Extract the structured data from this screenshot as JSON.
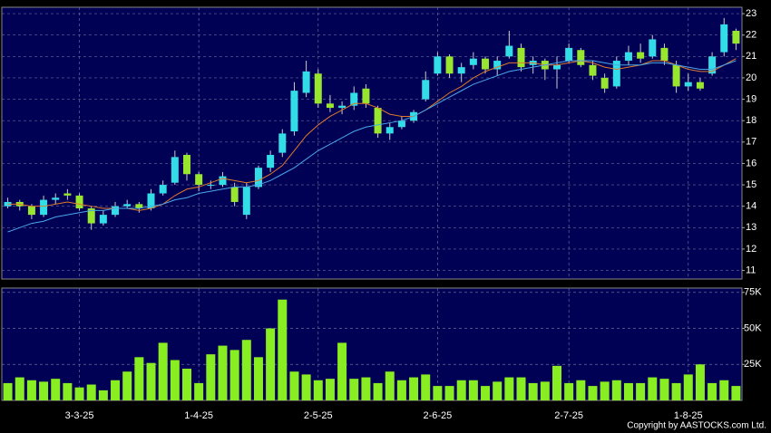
{
  "chart_data": {
    "type": "candlestick",
    "categories": [
      null,
      null,
      null,
      null,
      null,
      null,
      "3-3-25",
      null,
      null,
      null,
      null,
      null,
      null,
      null,
      null,
      null,
      "1-4-25",
      null,
      null,
      null,
      null,
      null,
      null,
      null,
      null,
      null,
      "2-5-25",
      null,
      null,
      null,
      null,
      null,
      null,
      null,
      null,
      null,
      "2-6-25",
      null,
      null,
      null,
      null,
      null,
      null,
      null,
      null,
      null,
      null,
      "2-7-25",
      null,
      null,
      null,
      null,
      null,
      null,
      null,
      null,
      null,
      "1-8-25",
      null,
      null,
      null,
      null
    ],
    "open": [
      14.0,
      14.2,
      14.0,
      13.6,
      14.3,
      14.6,
      14.5,
      13.9,
      13.2,
      13.6,
      14.0,
      14.1,
      13.9,
      14.6,
      15.1,
      16.4,
      15.5,
      15.0,
      15.0,
      14.9,
      13.6,
      14.9,
      15.8,
      16.5,
      17.5,
      19.3,
      20.2,
      18.8,
      18.6,
      18.7,
      19.5,
      18.6,
      17.4,
      17.7,
      18.0,
      19.0,
      20.2,
      21.0,
      20.2,
      20.6,
      20.9,
      20.4,
      21.0,
      21.4,
      20.6,
      20.8,
      20.4,
      20.8,
      21.3,
      20.6,
      20.0,
      19.6,
      20.8,
      21.2,
      21.0,
      21.4,
      20.6,
      19.6,
      19.8,
      20.2,
      21.2,
      22.2
    ],
    "high": [
      14.4,
      14.3,
      14.1,
      14.5,
      14.6,
      14.8,
      14.6,
      14.0,
      13.8,
      14.2,
      14.3,
      14.2,
      14.8,
      15.2,
      16.6,
      16.5,
      15.6,
      15.2,
      15.6,
      15.1,
      15.1,
      15.9,
      16.6,
      17.6,
      19.8,
      20.8,
      20.4,
      19.2,
      18.9,
      19.6,
      19.7,
      18.7,
      17.9,
      18.2,
      18.5,
      20.3,
      21.2,
      21.1,
      20.7,
      21.2,
      21.0,
      21.0,
      22.2,
      21.6,
      21.0,
      20.9,
      21.0,
      21.6,
      21.4,
      20.8,
      20.2,
      21.0,
      21.5,
      21.6,
      22.0,
      21.6,
      20.8,
      20.2,
      20.0,
      21.2,
      22.8,
      22.3
    ],
    "low": [
      13.9,
      13.8,
      13.4,
      13.5,
      14.1,
      14.3,
      13.8,
      12.9,
      13.1,
      13.5,
      13.9,
      13.7,
      13.8,
      14.5,
      15.0,
      15.2,
      14.7,
      14.8,
      14.9,
      14.0,
      13.4,
      14.8,
      15.6,
      16.3,
      17.3,
      19.1,
      18.6,
      18.4,
      18.3,
      18.5,
      18.6,
      17.2,
      17.1,
      17.6,
      17.9,
      18.9,
      20.1,
      20.0,
      19.8,
      20.4,
      20.2,
      20.1,
      20.9,
      20.3,
      20.2,
      19.9,
      19.5,
      20.7,
      20.5,
      19.9,
      19.3,
      19.5,
      20.6,
      20.7,
      20.9,
      20.6,
      19.3,
      19.4,
      19.4,
      20.1,
      21.0,
      21.3
    ],
    "close": [
      14.2,
      14.0,
      13.6,
      14.3,
      14.4,
      14.5,
      13.9,
      13.2,
      13.6,
      14.0,
      14.1,
      13.9,
      14.6,
      15.0,
      16.3,
      15.5,
      15.0,
      15.0,
      15.4,
      14.2,
      14.9,
      15.8,
      16.4,
      17.4,
      19.4,
      20.3,
      18.8,
      18.6,
      18.7,
      19.3,
      18.8,
      17.4,
      17.7,
      18.0,
      18.4,
      19.9,
      21.0,
      20.2,
      20.5,
      20.9,
      20.4,
      20.8,
      21.5,
      20.5,
      20.8,
      20.4,
      20.6,
      21.4,
      20.6,
      20.1,
      19.5,
      20.8,
      21.2,
      20.9,
      21.8,
      20.8,
      19.6,
      19.8,
      19.5,
      21.0,
      22.5,
      21.6
    ],
    "up_color": "#33dde8",
    "down_color": "#99e62e",
    "series": [
      {
        "color": "#e07a2a",
        "values": [
          14.1,
          14.1,
          14.0,
          14.0,
          14.1,
          14.2,
          14.1,
          14.0,
          13.9,
          13.9,
          13.9,
          13.8,
          13.9,
          14.1,
          14.5,
          14.8,
          14.9,
          15.1,
          15.3,
          15.2,
          15.1,
          15.2,
          15.5,
          15.9,
          16.6,
          17.3,
          17.8,
          18.2,
          18.5,
          18.8,
          18.8,
          18.6,
          18.3,
          18.2,
          18.2,
          18.5,
          18.9,
          19.3,
          19.6,
          20.0,
          20.3,
          20.5,
          20.7,
          20.7,
          20.7,
          20.6,
          20.6,
          20.7,
          20.8,
          20.7,
          20.5,
          20.4,
          20.5,
          20.6,
          20.8,
          20.8,
          20.6,
          20.4,
          20.3,
          20.3,
          20.6,
          20.9
        ]
      },
      {
        "color": "#4aa8e8",
        "values": [
          12.8,
          13.0,
          13.2,
          13.3,
          13.5,
          13.6,
          13.7,
          13.8,
          13.8,
          13.9,
          13.9,
          13.9,
          14.0,
          14.1,
          14.3,
          14.4,
          14.6,
          14.7,
          14.8,
          14.9,
          14.9,
          15.0,
          15.2,
          15.5,
          15.8,
          16.2,
          16.6,
          16.9,
          17.2,
          17.5,
          17.7,
          17.8,
          17.9,
          18.0,
          18.2,
          18.5,
          18.8,
          19.1,
          19.4,
          19.7,
          19.9,
          20.1,
          20.3,
          20.4,
          20.5,
          20.6,
          20.7,
          20.8,
          20.8,
          20.8,
          20.7,
          20.6,
          20.6,
          20.6,
          20.7,
          20.7,
          20.6,
          20.5,
          20.4,
          20.4,
          20.6,
          20.8
        ]
      }
    ],
    "ylim": [
      10.6,
      23.3
    ],
    "yticks": [
      11,
      12,
      13,
      14,
      15,
      16,
      17,
      18,
      19,
      20,
      21,
      22,
      23
    ],
    "grid": true,
    "volume": {
      "color": "#88ee22",
      "values": [
        12000,
        16000,
        14000,
        13000,
        15000,
        12000,
        9000,
        11000,
        7000,
        14000,
        20000,
        30000,
        26000,
        40000,
        28000,
        22000,
        12000,
        32000,
        38000,
        35000,
        42000,
        30000,
        50000,
        70000,
        20000,
        18000,
        14000,
        15000,
        40000,
        15000,
        16000,
        12000,
        20000,
        14000,
        16000,
        18000,
        10000,
        10000,
        14000,
        14000,
        10000,
        13000,
        16000,
        16000,
        12000,
        13000,
        24000,
        12000,
        14000,
        10000,
        13000,
        14000,
        12000,
        12000,
        16000,
        15000,
        12000,
        18000,
        25000,
        12000,
        14000,
        10000
      ],
      "ylim": [
        0,
        78000
      ],
      "yticks": [
        {
          "value": 25000,
          "label": "25K"
        },
        {
          "value": 50000,
          "label": "50K"
        },
        {
          "value": 75000,
          "label": "75K"
        }
      ]
    }
  },
  "copyright": "Copyright by AASTOCKS.com Ltd."
}
